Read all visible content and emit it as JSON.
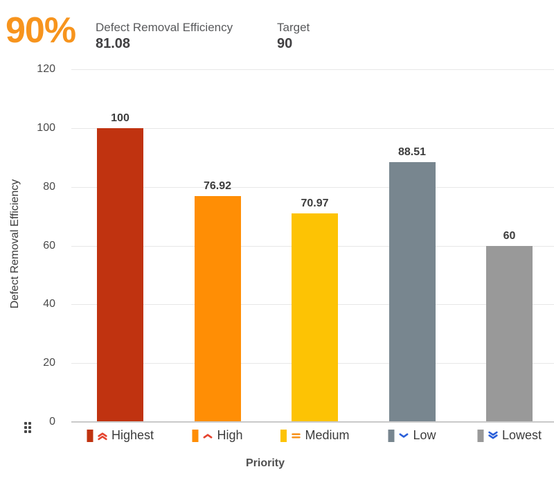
{
  "header": {
    "gauge_value": "90%",
    "kpi_label": "Defect Removal Efficiency",
    "kpi_value": "81.08",
    "target_label": "Target",
    "target_value": "90"
  },
  "chart_data": {
    "type": "bar",
    "title": "",
    "xlabel": "Priority",
    "ylabel": "Defect Removal Efficiency",
    "ylim": [
      0,
      120
    ],
    "yticks": [
      0,
      20,
      40,
      60,
      80,
      100,
      120
    ],
    "grid": true,
    "legend_position": "below-x-axis",
    "categories": [
      "Highest",
      "High",
      "Medium",
      "Low",
      "Lowest"
    ],
    "values": [
      100,
      76.92,
      70.97,
      88.51,
      60
    ],
    "value_labels": [
      "100",
      "76.92",
      "70.97",
      "88.51",
      "60"
    ],
    "bar_colors": [
      "#c03310",
      "#ff8e05",
      "#fdc304",
      "#78868f",
      "#999999"
    ],
    "category_icons": [
      {
        "name": "priority-highest-icon",
        "glyph": "double-chevron-up",
        "color": "#e5432e"
      },
      {
        "name": "priority-high-icon",
        "glyph": "chevron-up",
        "color": "#e5432e"
      },
      {
        "name": "priority-medium-icon",
        "glyph": "equals",
        "color": "#f79420"
      },
      {
        "name": "priority-low-icon",
        "glyph": "chevron-down",
        "color": "#2b5fd9"
      },
      {
        "name": "priority-lowest-icon",
        "glyph": "double-chevron-down",
        "color": "#2b5fd9"
      }
    ]
  },
  "icons": {
    "drag_handle": "drag-handle-icon"
  },
  "colors": {
    "accent_orange": "#f7941d",
    "grid_line": "#e7e7e7",
    "axis_line": "#c9c9c9",
    "text_dark": "#414042",
    "text_gray": "#58595b"
  }
}
